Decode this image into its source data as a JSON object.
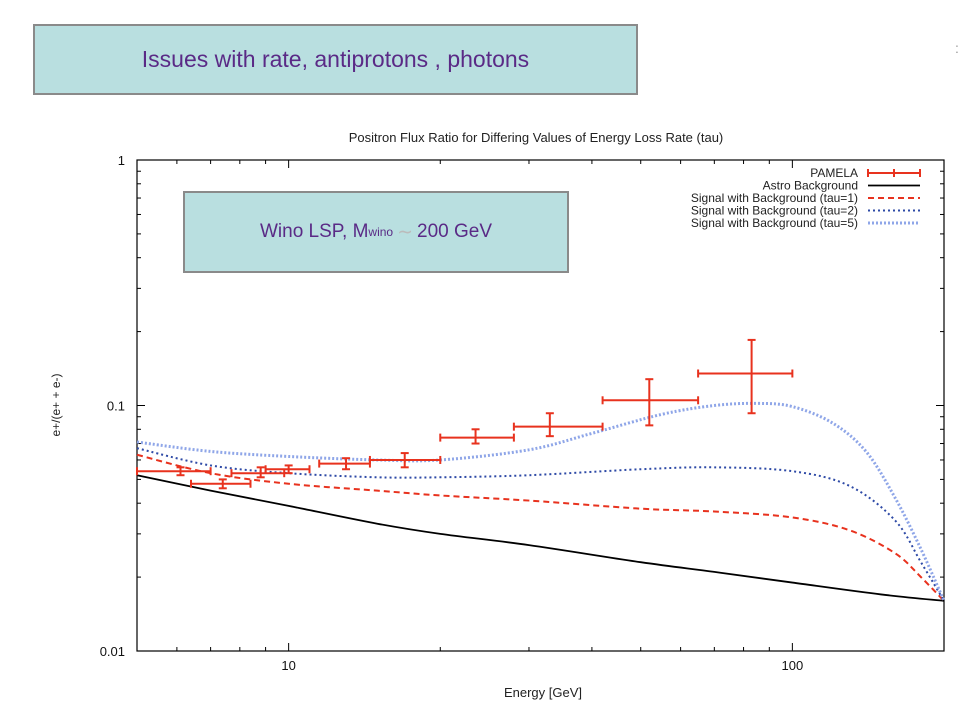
{
  "title_box": {
    "text": "Issues with rate, antiprotons , photons"
  },
  "annotation": {
    "prefix": "Wino LSP, M",
    "subscript": "wino",
    "symbol": "∼",
    "suffix": "200 GeV"
  },
  "stray_mark": ":",
  "colors": {
    "pamela": "#e8321e",
    "astro": "#000000",
    "tau1": "#e8321e",
    "tau2": "#2e4aa6",
    "tau5": "#8fa6e8",
    "box_fill": "#b9dfe0",
    "title_text": "#5a2a86"
  },
  "chart_data": {
    "type": "scatter",
    "title": "Positron Flux Ratio for Differing Values of Energy Loss Rate (tau)",
    "xlabel": "Energy [GeV]",
    "ylabel": "e+/(e+ + e-)",
    "xscale": "log",
    "yscale": "log",
    "xlim": [
      5,
      200
    ],
    "ylim": [
      0.01,
      1
    ],
    "xticks": [
      10,
      100
    ],
    "xtick_labels": [
      "10",
      "100"
    ],
    "yticks": [
      0.01,
      0.1,
      1
    ],
    "ytick_labels": [
      "0.01",
      "0.1",
      "1"
    ],
    "grid": false,
    "legend_position": "top-right",
    "series": [
      {
        "name": "PAMELA",
        "kind": "errorbar",
        "points": [
          {
            "x": 6.1,
            "xlo": 5.0,
            "xhi": 7.0,
            "y": 0.054,
            "ylo": 0.052,
            "yhi": 0.056
          },
          {
            "x": 7.4,
            "xlo": 6.4,
            "xhi": 8.4,
            "y": 0.048,
            "ylo": 0.046,
            "yhi": 0.05
          },
          {
            "x": 8.8,
            "xlo": 7.7,
            "xhi": 9.8,
            "y": 0.053,
            "ylo": 0.051,
            "yhi": 0.056
          },
          {
            "x": 10.0,
            "xlo": 9.0,
            "xhi": 11.0,
            "y": 0.055,
            "ylo": 0.053,
            "yhi": 0.057
          },
          {
            "x": 13.0,
            "xlo": 11.5,
            "xhi": 14.5,
            "y": 0.058,
            "ylo": 0.055,
            "yhi": 0.061
          },
          {
            "x": 17.0,
            "xlo": 14.5,
            "xhi": 20.0,
            "y": 0.06,
            "ylo": 0.056,
            "yhi": 0.064
          },
          {
            "x": 23.5,
            "xlo": 20.0,
            "xhi": 28.0,
            "y": 0.074,
            "ylo": 0.07,
            "yhi": 0.08
          },
          {
            "x": 33.0,
            "xlo": 28.0,
            "xhi": 42.0,
            "y": 0.082,
            "ylo": 0.075,
            "yhi": 0.093
          },
          {
            "x": 52.0,
            "xlo": 42.0,
            "xhi": 65.0,
            "y": 0.105,
            "ylo": 0.083,
            "yhi": 0.128
          },
          {
            "x": 83.0,
            "xlo": 65.0,
            "xhi": 100.0,
            "y": 0.135,
            "ylo": 0.093,
            "yhi": 0.185
          }
        ]
      },
      {
        "name": "Astro Background",
        "kind": "line",
        "style": "solid",
        "x": [
          5,
          7,
          10,
          15,
          20,
          30,
          50,
          70,
          100,
          150,
          200
        ],
        "y": [
          0.052,
          0.045,
          0.039,
          0.033,
          0.03,
          0.027,
          0.023,
          0.021,
          0.019,
          0.017,
          0.016
        ]
      },
      {
        "name": "Signal with Background (tau=1)",
        "kind": "line",
        "style": "dashed",
        "x": [
          5,
          7,
          10,
          15,
          20,
          30,
          50,
          70,
          100,
          130,
          160,
          180,
          200
        ],
        "y": [
          0.063,
          0.053,
          0.048,
          0.045,
          0.043,
          0.041,
          0.038,
          0.037,
          0.035,
          0.031,
          0.025,
          0.02,
          0.016
        ]
      },
      {
        "name": "Signal with Background (tau=2)",
        "kind": "line",
        "style": "dotted",
        "x": [
          5,
          7,
          10,
          15,
          20,
          30,
          50,
          70,
          100,
          130,
          160,
          180,
          200
        ],
        "y": [
          0.067,
          0.057,
          0.053,
          0.051,
          0.051,
          0.052,
          0.055,
          0.056,
          0.054,
          0.047,
          0.034,
          0.023,
          0.016
        ]
      },
      {
        "name": "Signal with Background (tau=5)",
        "kind": "line",
        "style": "dotted-thick",
        "x": [
          5,
          7,
          10,
          15,
          20,
          30,
          40,
          55,
          70,
          85,
          100,
          120,
          140,
          160,
          180,
          200
        ],
        "y": [
          0.071,
          0.065,
          0.062,
          0.06,
          0.06,
          0.066,
          0.077,
          0.092,
          0.1,
          0.102,
          0.099,
          0.085,
          0.065,
          0.042,
          0.026,
          0.016
        ]
      }
    ]
  }
}
